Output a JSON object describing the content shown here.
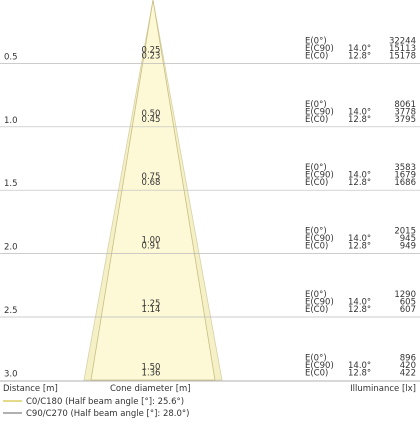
{
  "axis_labels": {
    "distance": "Distance [m]",
    "cone": "Cone diameter [m]",
    "illuminance": "Illuminance [lx]"
  },
  "row_labels": {
    "e0": "E(0°)",
    "ec90": "E(C90)",
    "ec0": "E(C0)",
    "angle_c90": "14.0°",
    "angle_c0": "12.8°"
  },
  "rows": [
    {
      "distance": "0.5",
      "d_c90": "0.25",
      "d_c0": "0.23",
      "e0": "32244",
      "ec90": "15113",
      "ec0": "15178"
    },
    {
      "distance": "1.0",
      "d_c90": "0.50",
      "d_c0": "0.45",
      "e0": "8061",
      "ec90": "3778",
      "ec0": "3795"
    },
    {
      "distance": "1.5",
      "d_c90": "0.75",
      "d_c0": "0.68",
      "e0": "3583",
      "ec90": "1679",
      "ec0": "1686"
    },
    {
      "distance": "2.0",
      "d_c90": "1.00",
      "d_c0": "0.91",
      "e0": "2015",
      "ec90": "945",
      "ec0": "949"
    },
    {
      "distance": "2.5",
      "d_c90": "1.25",
      "d_c0": "1.14",
      "e0": "1290",
      "ec90": "605",
      "ec0": "607"
    },
    {
      "distance": "3.0",
      "d_c90": "1.50",
      "d_c0": "1.36",
      "e0": "896",
      "ec90": "420",
      "ec0": "422"
    }
  ],
  "legend": [
    "C0/C180 (Half beam angle [°]: 25.6°)",
    "C90/C270 (Half beam angle [°]: 28.0°)"
  ]
}
